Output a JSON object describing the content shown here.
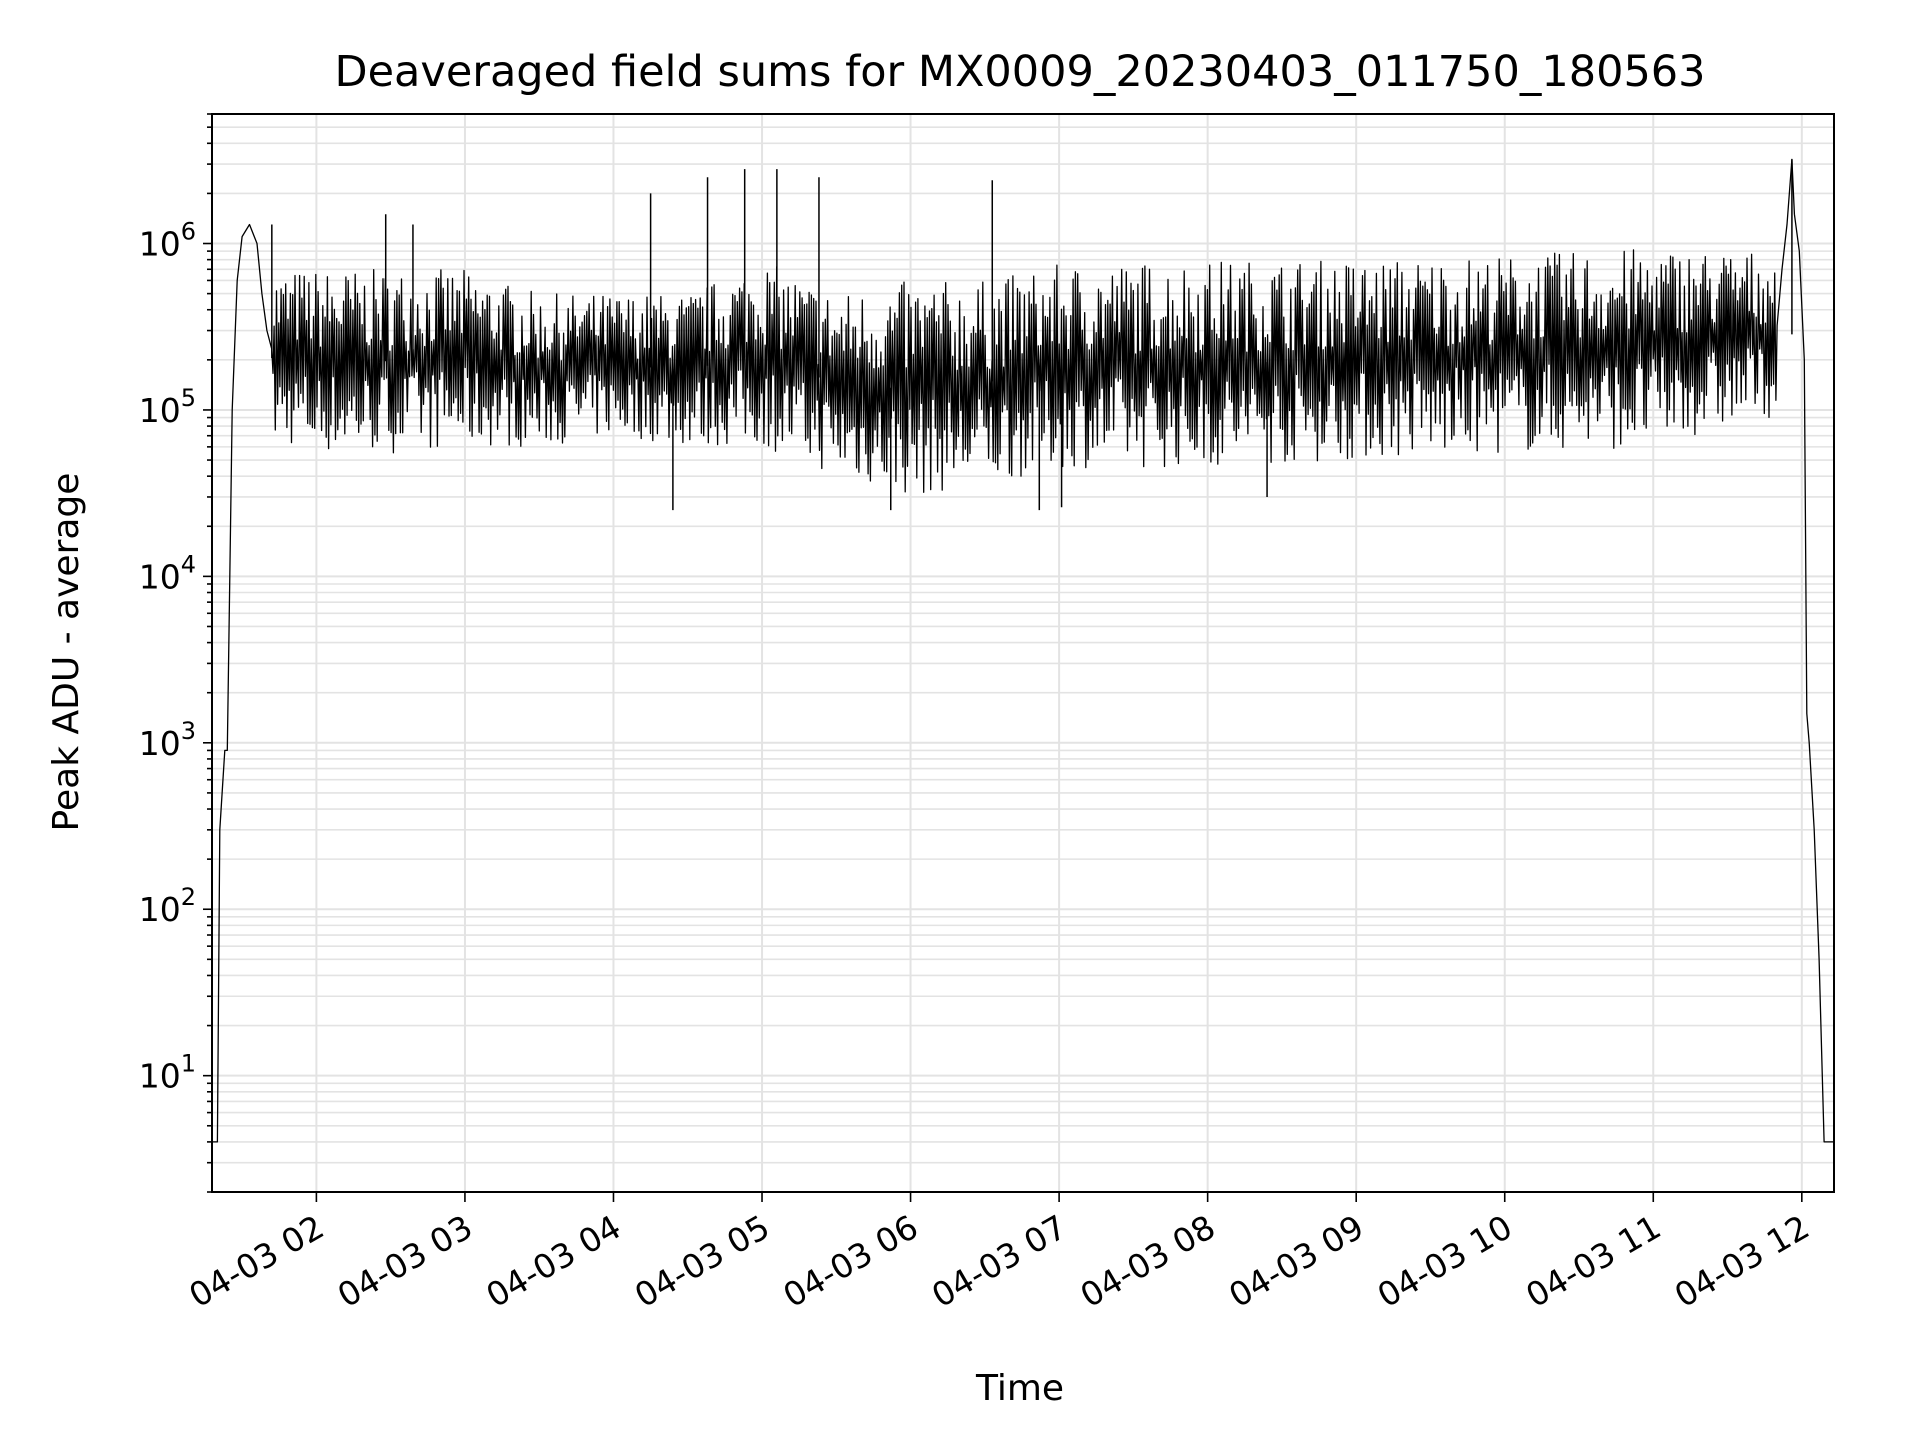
{
  "chart_data": {
    "type": "line",
    "title": "Deaveraged field sums for MX0009_20230403_011750_180563",
    "xlabel": "Time",
    "ylabel": "Peak ADU - average",
    "x_tick_labels": [
      "04-03 02",
      "04-03 03",
      "04-03 04",
      "04-03 05",
      "04-03 06",
      "04-03 07",
      "04-03 08",
      "04-03 09",
      "04-03 10",
      "04-03 11",
      "04-03 12"
    ],
    "x_ticks": [
      "2023-04-03T02:00",
      "2023-04-03T03:00",
      "2023-04-03T04:00",
      "2023-04-03T05:00",
      "2023-04-03T06:00",
      "2023-04-03T07:00",
      "2023-04-03T08:00",
      "2023-04-03T09:00",
      "2023-04-03T10:00",
      "2023-04-03T11:00",
      "2023-04-03T12:00"
    ],
    "xlim": [
      "2023-04-03T01:17:50",
      "2023-04-03T12:13:00"
    ],
    "y_scale": "log",
    "ylim": [
      2,
      6000000
    ],
    "y_ticks": [
      {
        "base": "10",
        "exp": "1",
        "value": 10
      },
      {
        "base": "10",
        "exp": "2",
        "value": 100
      },
      {
        "base": "10",
        "exp": "3",
        "value": 1000
      },
      {
        "base": "10",
        "exp": "4",
        "value": 10000
      },
      {
        "base": "10",
        "exp": "5",
        "value": 100000
      },
      {
        "base": "10",
        "exp": "6",
        "value": 1000000
      }
    ],
    "grid": true,
    "series": [
      {
        "color": "#000000",
        "points": [
          [
            "2023-04-03T01:17:50",
            4
          ],
          [
            "2023-04-03T01:20:00",
            4
          ],
          [
            "2023-04-03T01:21:00",
            300
          ],
          [
            "2023-04-03T01:23:00",
            900
          ],
          [
            "2023-04-03T01:24:00",
            900
          ],
          [
            "2023-04-03T01:26:00",
            100000
          ],
          [
            "2023-04-03T01:28:00",
            600000
          ],
          [
            "2023-04-03T01:30:00",
            1100000
          ],
          [
            "2023-04-03T01:33:00",
            1300000
          ],
          [
            "2023-04-03T01:36:00",
            1000000
          ],
          [
            "2023-04-03T01:38:00",
            500000
          ],
          [
            "2023-04-03T01:40:00",
            300000
          ],
          [
            "2023-04-03T01:42:00",
            150000
          ],
          [
            "2023-04-03T01:45:00",
            70000
          ],
          [
            "2023-04-03T01:50:00",
            80000
          ],
          [
            "2023-04-03T02:00:00",
            70000
          ],
          [
            "2023-04-03T02:30:00",
            100000
          ],
          [
            "2023-04-03T03:00:00",
            150000
          ],
          [
            "2023-04-03T03:30:00",
            200000
          ],
          [
            "2023-04-03T04:00:00",
            350000
          ],
          [
            "2023-04-03T04:30:00",
            300000
          ],
          [
            "2023-04-03T05:00:00",
            250000
          ],
          [
            "2023-04-03T05:30:00",
            100000
          ],
          [
            "2023-04-03T06:00:00",
            60000
          ],
          [
            "2023-04-03T06:30:00",
            80000
          ],
          [
            "2023-04-03T07:00:00",
            100000
          ],
          [
            "2023-04-03T07:30:00",
            150000
          ],
          [
            "2023-04-03T08:00:00",
            200000
          ],
          [
            "2023-04-03T09:00:00",
            250000
          ],
          [
            "2023-04-03T10:00:00",
            300000
          ],
          [
            "2023-04-03T11:00:00",
            400000
          ],
          [
            "2023-04-03T11:45:00",
            350000
          ],
          [
            "2023-04-03T11:52:00",
            700000
          ],
          [
            "2023-04-03T11:54:00",
            1300000
          ],
          [
            "2023-04-03T11:56:00",
            3200000
          ],
          [
            "2023-04-03T11:57:00",
            1500000
          ],
          [
            "2023-04-03T11:59:00",
            900000
          ],
          [
            "2023-04-03T12:01:00",
            200000
          ],
          [
            "2023-04-03T12:02:00",
            1500
          ],
          [
            "2023-04-03T12:03:00",
            1000
          ],
          [
            "2023-04-03T12:05:00",
            300
          ],
          [
            "2023-04-03T12:07:00",
            50
          ],
          [
            "2023-04-03T12:09:00",
            4
          ],
          [
            "2023-04-03T12:13:00",
            4
          ]
        ],
        "upper_envelope": [
          [
            "2023-04-03T01:50:00",
            700000
          ],
          [
            "2023-04-03T02:00:00",
            700000
          ],
          [
            "2023-04-03T02:30:00",
            700000
          ],
          [
            "2023-04-03T03:00:00",
            700000
          ],
          [
            "2023-04-03T03:30:00",
            500000
          ],
          [
            "2023-04-03T04:00:00",
            500000
          ],
          [
            "2023-04-03T04:30:00",
            500000
          ],
          [
            "2023-04-03T05:00:00",
            800000
          ],
          [
            "2023-04-03T05:30:00",
            500000
          ],
          [
            "2023-04-03T06:00:00",
            600000
          ],
          [
            "2023-04-03T06:30:00",
            600000
          ],
          [
            "2023-04-03T07:00:00",
            750000
          ],
          [
            "2023-04-03T08:00:00",
            800000
          ],
          [
            "2023-04-03T09:00:00",
            800000
          ],
          [
            "2023-04-03T10:00:00",
            850000
          ],
          [
            "2023-04-03T11:00:00",
            950000
          ],
          [
            "2023-04-03T11:45:00",
            900000
          ]
        ],
        "lower_envelope": [
          [
            "2023-04-03T01:50:00",
            60000
          ],
          [
            "2023-04-03T02:00:00",
            55000
          ],
          [
            "2023-04-03T02:30:00",
            55000
          ],
          [
            "2023-04-03T03:00:00",
            60000
          ],
          [
            "2023-04-03T03:30:00",
            60000
          ],
          [
            "2023-04-03T04:00:00",
            70000
          ],
          [
            "2023-04-03T04:30:00",
            60000
          ],
          [
            "2023-04-03T05:00:00",
            60000
          ],
          [
            "2023-04-03T05:30:00",
            40000
          ],
          [
            "2023-04-03T06:00:00",
            30000
          ],
          [
            "2023-04-03T06:30:00",
            35000
          ],
          [
            "2023-04-03T07:00:00",
            45000
          ],
          [
            "2023-04-03T08:00:00",
            45000
          ],
          [
            "2023-04-03T09:00:00",
            50000
          ],
          [
            "2023-04-03T10:00:00",
            55000
          ],
          [
            "2023-04-03T11:00:00",
            60000
          ],
          [
            "2023-04-03T11:45:00",
            90000
          ]
        ],
        "spikes": [
          [
            "2023-04-03T01:42:00",
            1300000
          ],
          [
            "2023-04-03T02:28:00",
            1500000
          ],
          [
            "2023-04-03T02:39:00",
            1300000
          ],
          [
            "2023-04-03T04:15:00",
            2000000
          ],
          [
            "2023-04-03T04:38:00",
            2500000
          ],
          [
            "2023-04-03T04:53:00",
            2800000
          ],
          [
            "2023-04-03T05:06:00",
            2800000
          ],
          [
            "2023-04-03T05:23:00",
            2500000
          ],
          [
            "2023-04-03T06:33:00",
            2400000
          ],
          [
            "2023-04-03T11:56:00",
            3200000
          ]
        ],
        "dips": [
          [
            "2023-04-03T04:24:00",
            25000
          ],
          [
            "2023-04-03T05:52:00",
            25000
          ],
          [
            "2023-04-03T06:52:00",
            25000
          ],
          [
            "2023-04-03T07:01:00",
            26000
          ],
          [
            "2023-04-03T08:24:00",
            30000
          ]
        ]
      }
    ]
  }
}
